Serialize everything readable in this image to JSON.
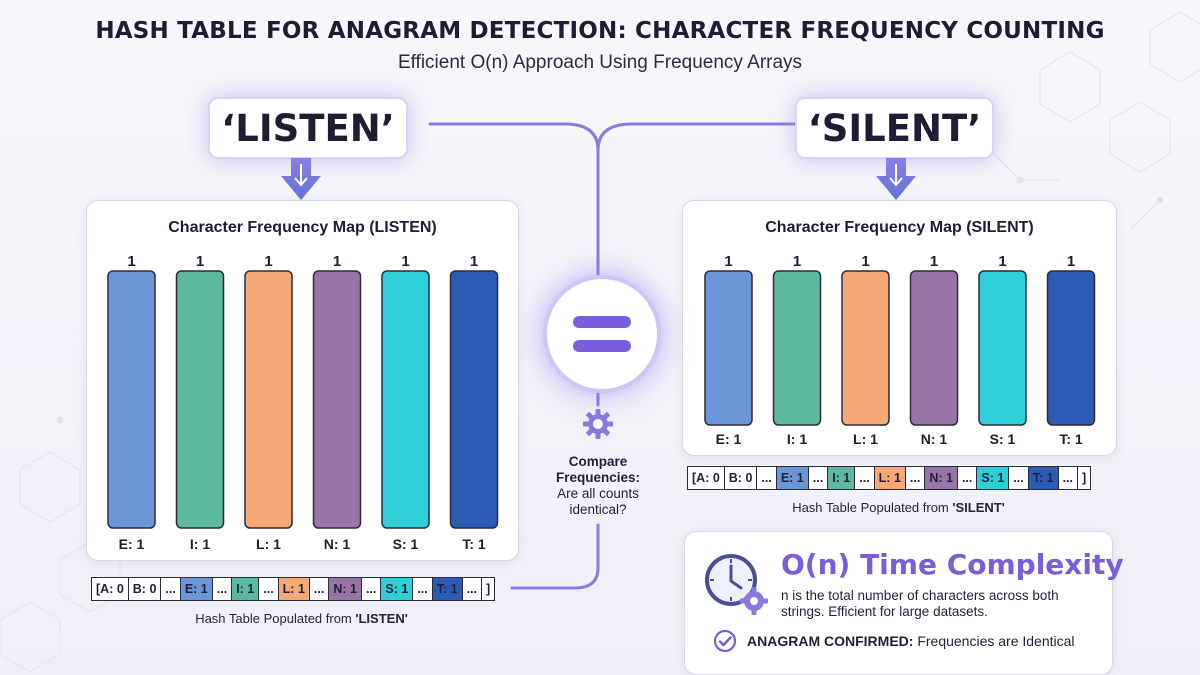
{
  "title": "HASH TABLE FOR ANAGRAM DETECTION: CHARACTER FREQUENCY COUNTING",
  "subtitle": "Efficient O(n) Approach Using Frequency Arrays",
  "left": {
    "word": "‘LISTEN’",
    "map_title": "Character Frequency Map (LISTEN)",
    "caption_prefix": "Hash Table Populated from ",
    "caption_source": "'LISTEN'"
  },
  "right": {
    "word": "‘SILENT’",
    "map_title": "Character Frequency Map (SILENT)",
    "caption_prefix": "Hash Table Populated from ",
    "caption_source": "'SILENT'"
  },
  "chart_data": [
    {
      "type": "bar",
      "title": "Character Frequency Map (LISTEN)",
      "categories": [
        "E: 1",
        "I: 1",
        "L: 1",
        "N: 1",
        "S: 1",
        "T: 1"
      ],
      "values": [
        1,
        1,
        1,
        1,
        1,
        1
      ],
      "value_labels": [
        "1",
        "1",
        "1",
        "1",
        "1",
        "1"
      ],
      "colors": [
        "#6b96d8",
        "#5cb89e",
        "#f6a877",
        "#9874a8",
        "#2fcfd8",
        "#2c5bb5"
      ],
      "ylim": [
        0,
        1
      ]
    },
    {
      "type": "bar",
      "title": "Character Frequency Map (SILENT)",
      "categories": [
        "E: 1",
        "I: 1",
        "L: 1",
        "N: 1",
        "S: 1",
        "T: 1"
      ],
      "values": [
        1,
        1,
        1,
        1,
        1,
        1
      ],
      "value_labels": [
        "1",
        "1",
        "1",
        "1",
        "1",
        "1"
      ],
      "colors": [
        "#6b96d8",
        "#5cb89e",
        "#f6a877",
        "#9874a8",
        "#2fcfd8",
        "#2c5bb5"
      ],
      "ylim": [
        0,
        1
      ]
    }
  ],
  "hash_table": {
    "cells": [
      "[A: 0",
      "B: 0",
      "...",
      "E: 1",
      "...",
      "I: 1",
      "...",
      "L: 1",
      "...",
      "N: 1",
      "...",
      "S: 1",
      "...",
      "T: 1",
      "...",
      "]"
    ],
    "cell_colors": [
      "",
      "",
      "",
      "#6b96d8",
      "",
      "#5cb89e",
      "",
      "#f6a877",
      "",
      "#9874a8",
      "",
      "#2fcfd8",
      "",
      "#2c5bb5",
      "",
      ""
    ]
  },
  "compare": {
    "line1": "Compare",
    "line2": "Frequencies:",
    "line3": "Are all counts",
    "line4": "identical?"
  },
  "complexity": {
    "title": "O(n) Time Complexity",
    "description": "n is the total number of characters across both strings. Efficient for large datasets.",
    "confirm_label": "ANAGRAM CONFIRMED:",
    "confirm_text": " Frequencies are Identical"
  },
  "colors": {
    "accent": "#7b5ddb",
    "connector": "#8f78e0"
  }
}
